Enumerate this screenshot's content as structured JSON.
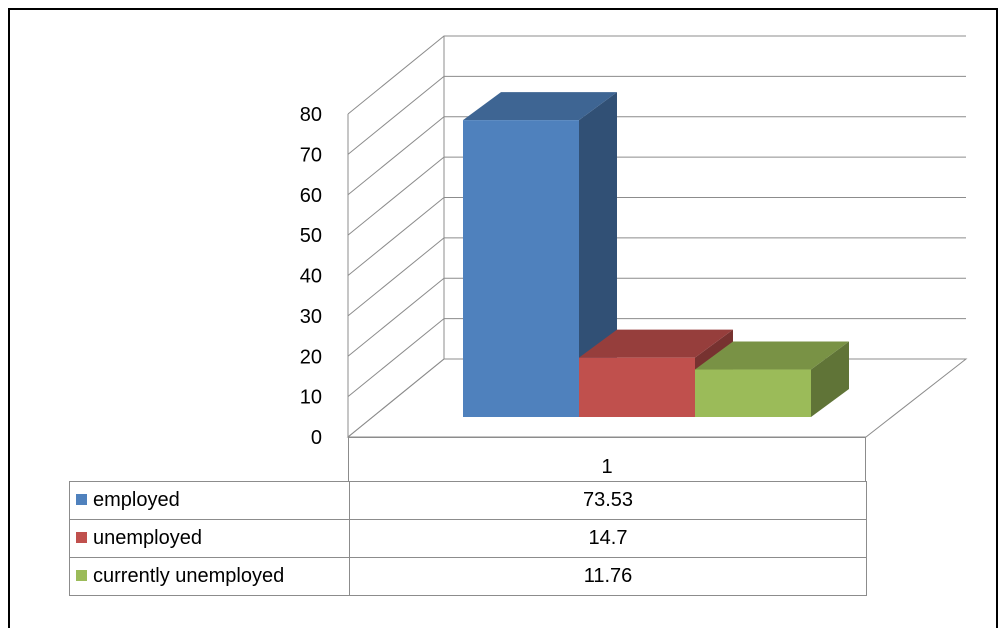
{
  "chart_data": {
    "type": "bar",
    "categories": [
      "1"
    ],
    "series": [
      {
        "name": "employed",
        "values": [
          73.53
        ],
        "color": "#4F81BD"
      },
      {
        "name": "unemployed",
        "values": [
          14.7
        ],
        "color": "#C0504D"
      },
      {
        "name": "currently unemployed",
        "values": [
          11.76
        ],
        "color": "#9BBB59"
      }
    ],
    "ylim": [
      0,
      80
    ],
    "yticks": [
      0,
      10,
      20,
      30,
      40,
      50,
      60,
      70,
      80
    ],
    "grid": true,
    "three_d": true,
    "data_table": true
  }
}
